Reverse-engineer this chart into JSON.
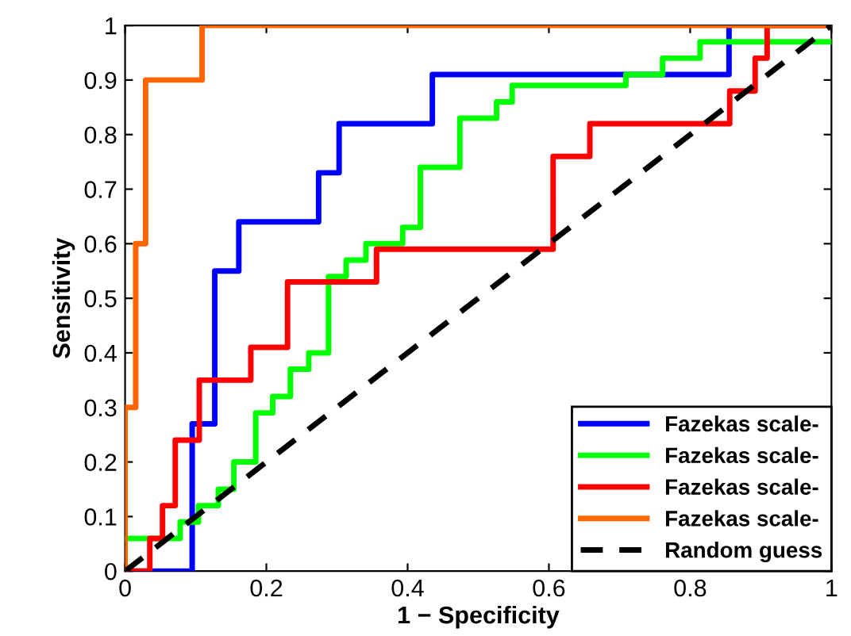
{
  "chart_data": {
    "type": "step",
    "xlabel": "1 − Specificity",
    "ylabel": "Sensitivity",
    "xlim": [
      0,
      1
    ],
    "ylim": [
      0,
      1
    ],
    "xticks": [
      0,
      0.2,
      0.4,
      0.6,
      0.8,
      1
    ],
    "yticks": [
      0,
      0.1,
      0.2,
      0.3,
      0.4,
      0.5,
      0.6,
      0.7,
      0.8,
      0.9,
      1
    ],
    "grid": false,
    "legend": "bottom right",
    "marker": "none",
    "series": [
      {
        "name": "Fazekas scale-",
        "color": "#0000ff",
        "x": [
          0,
          0.095,
          0.127,
          0.161,
          0.274,
          0.303,
          0.435,
          0.855
        ],
        "values": [
          0,
          0.27,
          0.55,
          0.64,
          0.73,
          0.82,
          0.91,
          1.0
        ]
      },
      {
        "name": "Fazekas scale-",
        "color": "#00ff00",
        "x": [
          0,
          0.078,
          0.104,
          0.132,
          0.154,
          0.185,
          0.209,
          0.234,
          0.26,
          0.288,
          0.313,
          0.341,
          0.393,
          0.418,
          0.474,
          0.526,
          0.548,
          0.709,
          0.761,
          0.814,
          1
        ],
        "values": [
          0.06,
          0.09,
          0.12,
          0.15,
          0.2,
          0.29,
          0.32,
          0.37,
          0.4,
          0.54,
          0.57,
          0.6,
          0.63,
          0.74,
          0.83,
          0.86,
          0.89,
          0.91,
          0.94,
          0.97,
          0.97
        ]
      },
      {
        "name": "Fazekas scale-",
        "color": "#ff0000",
        "x": [
          0,
          0.035,
          0.053,
          0.071,
          0.105,
          0.178,
          0.23,
          0.356,
          0.606,
          0.658,
          0.856,
          0.892,
          0.909,
          1
        ],
        "values": [
          0,
          0.06,
          0.12,
          0.24,
          0.35,
          0.41,
          0.53,
          0.59,
          0.76,
          0.82,
          0.88,
          0.94,
          1.0,
          1.0
        ]
      },
      {
        "name": "Fazekas scale-",
        "color": "#ff6600",
        "x": [
          0,
          0,
          0.015,
          0.029,
          0.109,
          1
        ],
        "values": [
          0,
          0.3,
          0.6,
          0.9,
          1.0,
          1.0
        ]
      },
      {
        "name": "Random guess",
        "type": "line",
        "line_style": "dashed",
        "color": "#000000",
        "x": [
          0,
          1
        ],
        "values": [
          0,
          1
        ]
      }
    ]
  }
}
